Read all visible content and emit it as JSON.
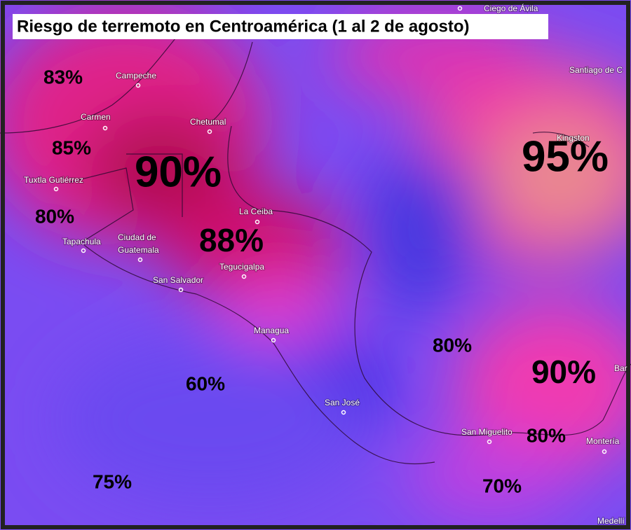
{
  "title": "Riesgo de terremoto en Centroamérica (1 al 2 de agosto)",
  "cities": [
    "Ciego de Ávila",
    "Santiago de C",
    "Campeche",
    "Carmen",
    "Chetumal",
    "Kingston",
    "Tuxtla Gutiérrez",
    "La Ceiba",
    "Tapachula",
    "Ciudad de",
    "Guatemala",
    "Tegucigalpa",
    "San Salvador",
    "Managua",
    "San José",
    "San Miguelito",
    "Montería",
    "Bar",
    "Medellí"
  ],
  "risk_labels": [
    "83%",
    "85%",
    "90%",
    "80%",
    "88%",
    "95%",
    "80%",
    "90%",
    "80%",
    "60%",
    "75%",
    "70%"
  ]
}
